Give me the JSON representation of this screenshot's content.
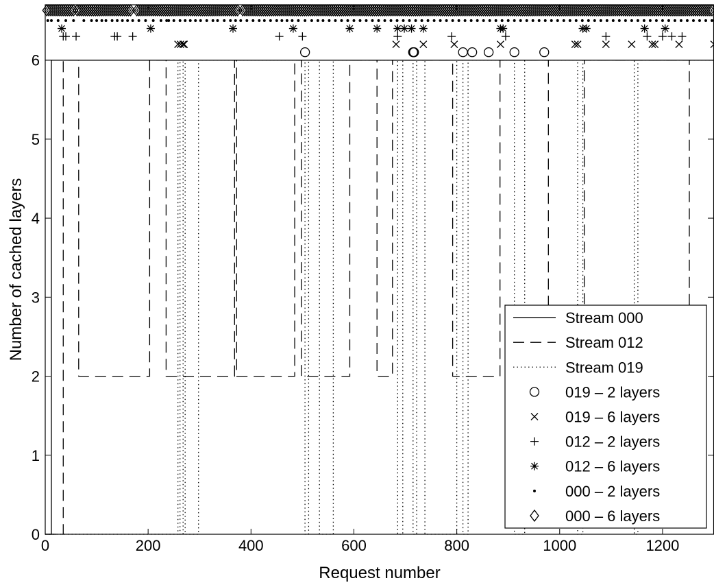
{
  "chart_data": {
    "type": "line",
    "title": "",
    "xlabel": "Request number",
    "ylabel": "Number of cached layers",
    "xlim": [
      0,
      1300
    ],
    "ylim": [
      0,
      6.7
    ],
    "xticks": [
      0,
      200,
      400,
      600,
      800,
      1000,
      1200
    ],
    "yticks": [
      0,
      1,
      2,
      3,
      4,
      5,
      6
    ],
    "grid": false,
    "legend_position": "bottom-right",
    "series": [
      {
        "name": "Stream 000",
        "style": "solid",
        "points": [
          [
            0,
            0
          ],
          [
            12,
            0
          ],
          [
            12,
            6
          ],
          [
            1300,
            6
          ]
        ]
      },
      {
        "name": "Stream 012",
        "style": "dashed",
        "points": [
          [
            0,
            0
          ],
          [
            35,
            0
          ],
          [
            35,
            6
          ],
          [
            65,
            6
          ],
          [
            65,
            2
          ],
          [
            203,
            2
          ],
          [
            203,
            6
          ],
          [
            235,
            6
          ],
          [
            235,
            2
          ],
          [
            368,
            2
          ],
          [
            368,
            6
          ],
          [
            372,
            6
          ],
          [
            372,
            2
          ],
          [
            485,
            2
          ],
          [
            485,
            6
          ],
          [
            498,
            6
          ],
          [
            498,
            2
          ],
          [
            592,
            2
          ],
          [
            592,
            6
          ],
          [
            645,
            6
          ],
          [
            645,
            2
          ],
          [
            675,
            2
          ],
          [
            675,
            6
          ],
          [
            792,
            6
          ],
          [
            792,
            2
          ],
          [
            884,
            2
          ],
          [
            884,
            6
          ],
          [
            978,
            6
          ],
          [
            978,
            2
          ],
          [
            1048,
            2
          ],
          [
            1048,
            6
          ],
          [
            1252,
            6
          ],
          [
            1252,
            2
          ],
          [
            1300,
            2
          ]
        ]
      },
      {
        "name": "Stream 019",
        "style": "dotted",
        "points": [
          [
            0,
            0
          ],
          [
            258,
            0
          ],
          [
            258,
            6
          ],
          [
            262,
            6
          ],
          [
            262,
            0
          ],
          [
            268,
            0
          ],
          [
            268,
            6
          ],
          [
            272,
            6
          ],
          [
            272,
            0
          ],
          [
            298,
            0
          ],
          [
            298,
            6
          ],
          [
            505,
            6
          ],
          [
            505,
            0
          ],
          [
            512,
            0
          ],
          [
            512,
            6
          ],
          [
            533,
            6
          ],
          [
            533,
            0
          ],
          [
            560,
            0
          ],
          [
            560,
            6
          ],
          [
            685,
            6
          ],
          [
            685,
            0
          ],
          [
            695,
            0
          ],
          [
            695,
            6
          ],
          [
            715,
            6
          ],
          [
            715,
            0
          ],
          [
            722,
            0
          ],
          [
            722,
            6
          ],
          [
            738,
            6
          ],
          [
            738,
            0
          ],
          [
            800,
            0
          ],
          [
            800,
            6
          ],
          [
            812,
            6
          ],
          [
            812,
            0
          ],
          [
            822,
            0
          ],
          [
            822,
            6
          ],
          [
            912,
            6
          ],
          [
            912,
            0
          ],
          [
            932,
            0
          ],
          [
            932,
            6
          ],
          [
            1035,
            6
          ],
          [
            1035,
            0
          ],
          [
            1045,
            0
          ],
          [
            1045,
            6
          ],
          [
            1145,
            6
          ],
          [
            1145,
            0
          ],
          [
            1152,
            0
          ],
          [
            1152,
            6
          ],
          [
            1300,
            6
          ]
        ]
      }
    ],
    "markers": [
      {
        "name": "019 – 2 layers",
        "symbol": "circle",
        "y": 6.1,
        "x": [
          505,
          715,
          716,
          717,
          812,
          830,
          862,
          912,
          970
        ]
      },
      {
        "name": "019 – 6 layers",
        "symbol": "x",
        "y": 6.2,
        "x": [
          258,
          263,
          268,
          270,
          682,
          735,
          795,
          885,
          1030,
          1035,
          1090,
          1140,
          1180,
          1185,
          1232,
          1300
        ]
      },
      {
        "name": "012 – 2 layers",
        "symbol": "plus",
        "y": 6.3,
        "x": [
          35,
          40,
          60,
          135,
          140,
          170,
          455,
          500,
          685,
          790,
          895,
          1090,
          1170,
          1200,
          1218,
          1238
        ]
      },
      {
        "name": "012 – 6 layers",
        "symbol": "asterisk",
        "y": 6.4,
        "x": [
          32,
          205,
          365,
          482,
          592,
          645,
          685,
          698,
          712,
          735,
          885,
          890,
          1045,
          1052,
          1165,
          1205
        ]
      },
      {
        "name": "000 – 2 layers",
        "symbol": "dot",
        "y": 6.5,
        "x": [
          5,
          12,
          25,
          40,
          55,
          75,
          90,
          100,
          110,
          118,
          130,
          140,
          150,
          160,
          170,
          182,
          195,
          210,
          225,
          236,
          240,
          250,
          262,
          272,
          282,
          292,
          302,
          314,
          326,
          335,
          348,
          360,
          370,
          380,
          392,
          404,
          416,
          426,
          438,
          450,
          460,
          470,
          480,
          492,
          505,
          518,
          530,
          540,
          552,
          564,
          576,
          588,
          600,
          612,
          624,
          636,
          648,
          660,
          672,
          684,
          696,
          708,
          720,
          732,
          744,
          756,
          768,
          780,
          792,
          804,
          816,
          828,
          840,
          852,
          864,
          876,
          888,
          900,
          912,
          924,
          936,
          948,
          960,
          972,
          984,
          996,
          1008,
          1020,
          1032,
          1044,
          1056,
          1068,
          1080,
          1092,
          1104,
          1116,
          1128,
          1140,
          1152,
          1164,
          1176,
          1188,
          1200,
          1212,
          1224,
          1236,
          1248,
          1260,
          1272,
          1284,
          1296
        ]
      },
      {
        "name": "000 – 6 layers",
        "symbol": "diamond",
        "y": 6.63,
        "x": [
          3,
          7,
          11,
          15,
          19,
          23,
          27,
          31,
          35,
          39,
          43,
          47,
          51,
          55,
          62,
          66,
          70,
          74,
          78,
          82,
          86,
          90,
          94,
          98,
          102,
          106,
          110,
          114,
          118,
          122,
          126,
          130,
          134,
          138,
          142,
          146,
          150,
          154,
          158,
          162,
          166,
          178,
          182,
          186,
          190,
          194,
          198,
          202,
          206,
          210,
          214,
          218,
          222,
          226,
          230,
          234,
          238,
          242,
          246,
          250,
          254,
          258,
          262,
          266,
          270,
          274,
          278,
          282,
          286,
          290,
          294,
          298,
          302,
          306,
          310,
          314,
          318,
          322,
          326,
          330,
          334,
          338,
          342,
          346,
          350,
          354,
          358,
          362,
          366,
          370,
          374,
          384,
          388,
          392,
          396,
          400,
          404,
          408,
          412,
          416,
          420,
          424,
          428,
          432,
          436,
          440,
          444,
          448,
          452,
          456,
          460,
          464,
          468,
          472,
          476,
          480,
          484,
          488,
          492,
          496,
          500,
          504,
          508,
          512,
          516,
          520,
          524,
          528,
          532,
          536,
          540,
          544,
          548,
          552,
          556,
          560,
          564,
          568,
          572,
          576,
          580,
          584,
          588,
          592,
          596,
          600,
          604,
          608,
          612,
          616,
          620,
          624,
          628,
          632,
          636,
          640,
          644,
          648,
          652,
          656,
          660,
          664,
          668,
          672,
          676,
          680,
          684,
          688,
          692,
          696,
          700,
          704,
          708,
          712,
          716,
          720,
          724,
          728,
          732,
          736,
          740,
          744,
          748,
          752,
          756,
          760,
          764,
          768,
          772,
          776,
          780,
          784,
          788,
          792,
          796,
          800,
          804,
          808,
          812,
          816,
          820,
          824,
          828,
          832,
          836,
          840,
          844,
          848,
          852,
          856,
          860,
          864,
          868,
          872,
          876,
          880,
          884,
          888,
          892,
          896,
          900,
          904,
          908,
          912,
          916,
          920,
          924,
          928,
          932,
          936,
          940,
          944,
          948,
          952,
          956,
          960,
          964,
          968,
          972,
          976,
          980,
          984,
          988,
          992,
          996,
          1000,
          1004,
          1008,
          1012,
          1016,
          1020,
          1024,
          1028,
          1032,
          1036,
          1040,
          1044,
          1048,
          1052,
          1056,
          1060,
          1064,
          1068,
          1072,
          1076,
          1080,
          1084,
          1088,
          1092,
          1096,
          1100,
          1104,
          1108,
          1112,
          1116,
          1120,
          1124,
          1128,
          1132,
          1136,
          1140,
          1144,
          1148,
          1152,
          1156,
          1160,
          1164,
          1168,
          1172,
          1176,
          1180,
          1184,
          1188,
          1192,
          1196,
          1200,
          1204,
          1208,
          1212,
          1216,
          1220,
          1224,
          1228,
          1232,
          1236,
          1240,
          1244,
          1248,
          1252,
          1256,
          1260,
          1264,
          1268,
          1272,
          1276,
          1280,
          1284,
          1288,
          1292,
          1296
        ]
      }
    ],
    "legend": [
      {
        "label": "Stream 000",
        "kind": "solid"
      },
      {
        "label": "Stream 012",
        "kind": "dashed"
      },
      {
        "label": "Stream 019",
        "kind": "dotted"
      },
      {
        "label": "019 – 2 layers",
        "kind": "circle"
      },
      {
        "label": "019 – 6 layers",
        "kind": "x"
      },
      {
        "label": "012 – 2 layers",
        "kind": "plus"
      },
      {
        "label": "012 – 6 layers",
        "kind": "asterisk"
      },
      {
        "label": "000 – 2 layers",
        "kind": "dot"
      },
      {
        "label": "000 – 6 layers",
        "kind": "diamond"
      }
    ]
  }
}
